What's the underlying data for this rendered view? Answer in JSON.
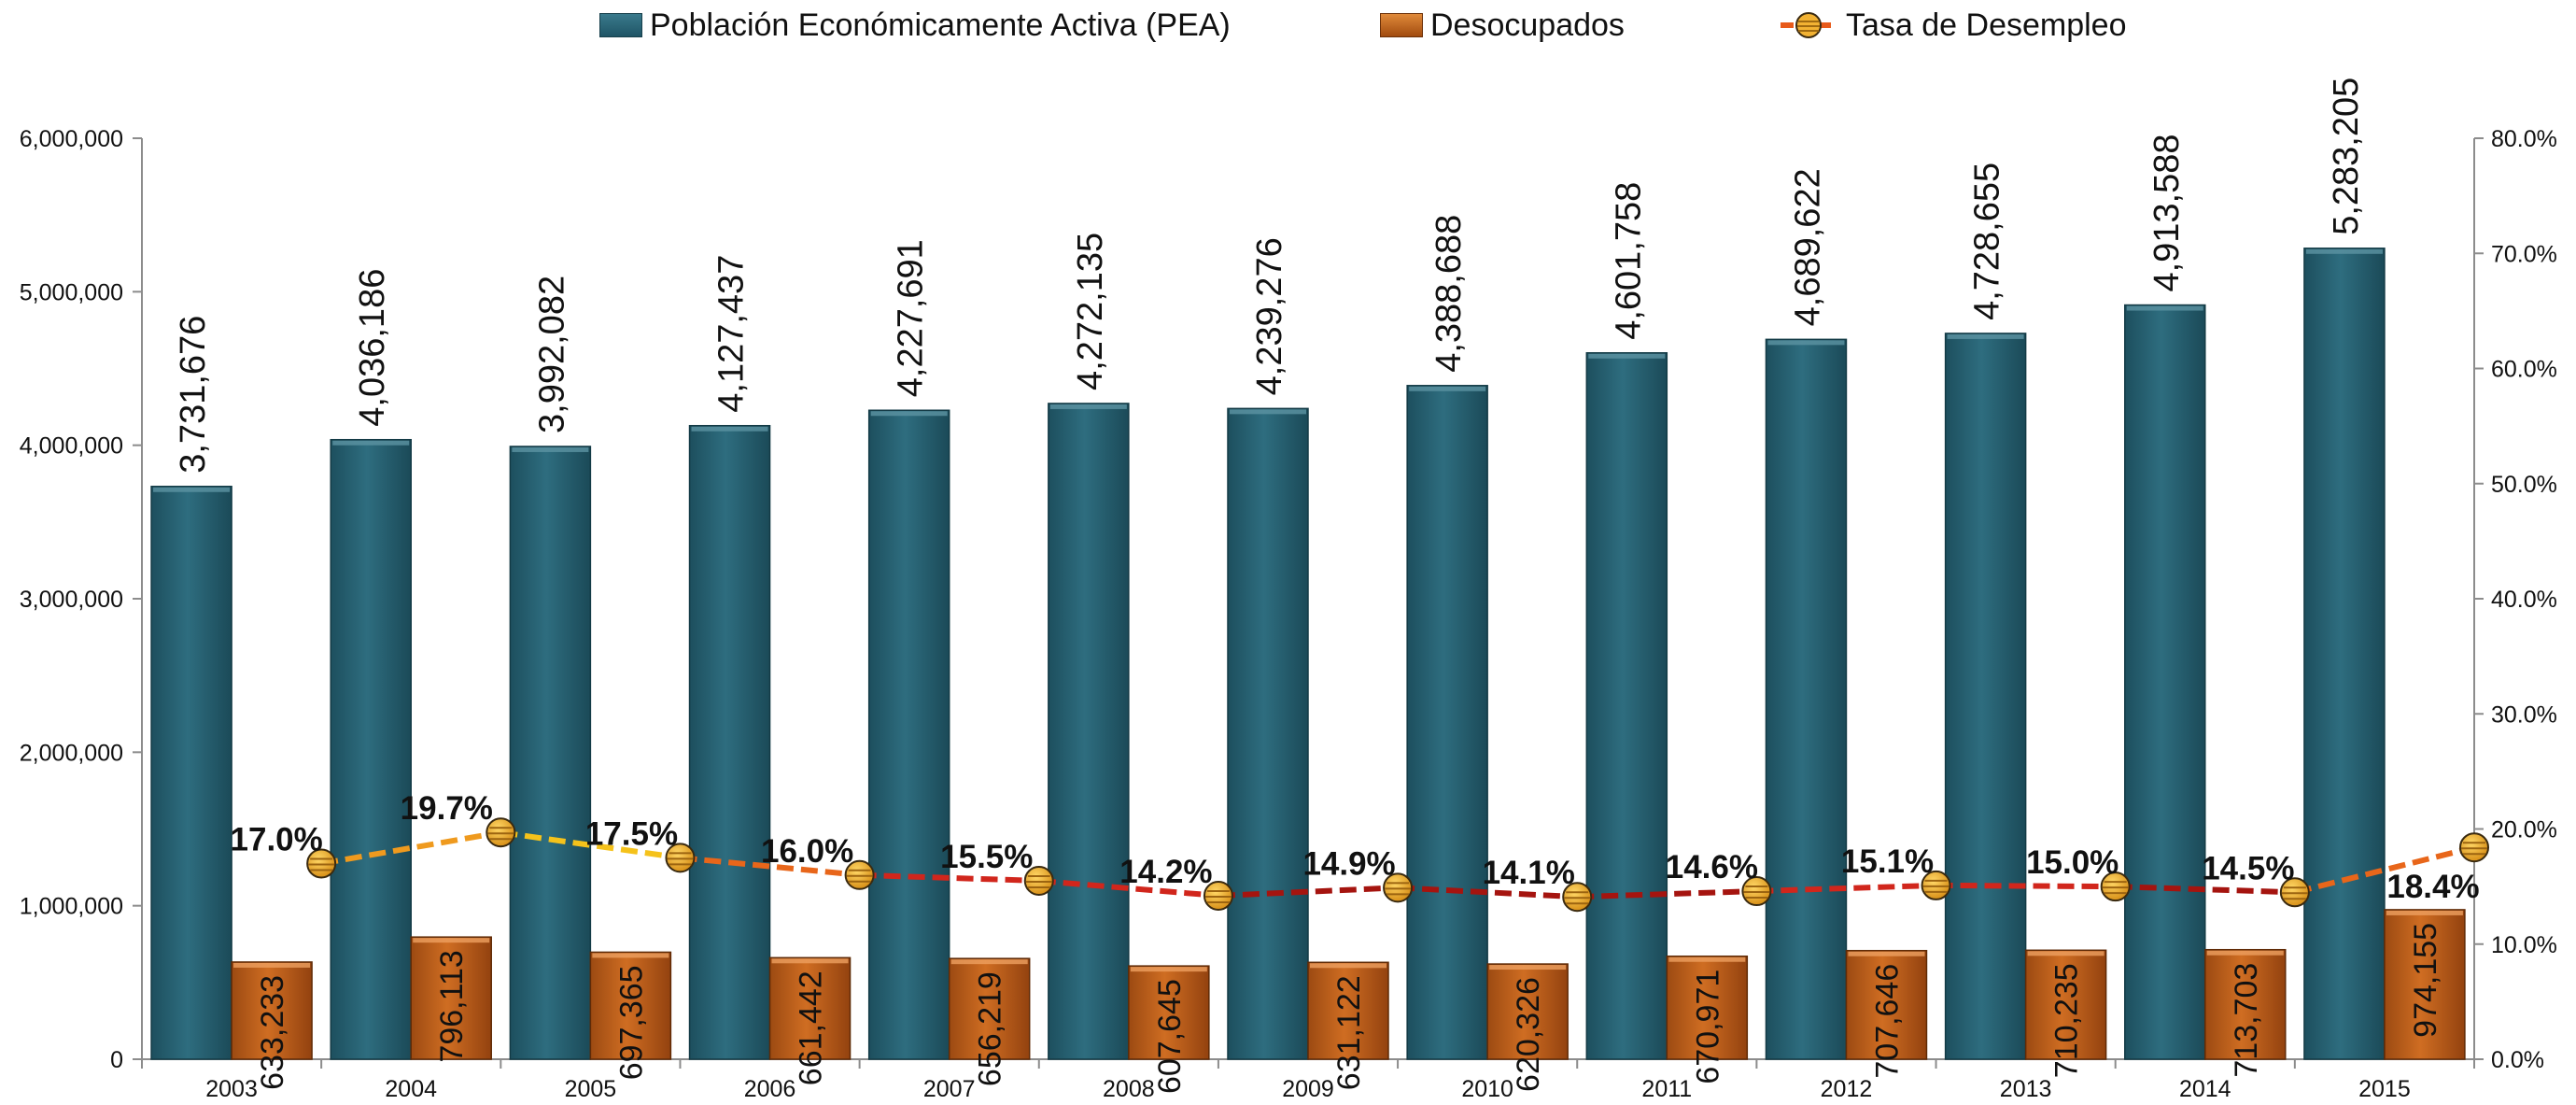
{
  "chart_data": {
    "type": "bar",
    "categories": [
      "2003",
      "2004",
      "2005",
      "2006",
      "2007",
      "2008",
      "2009",
      "2010",
      "2011",
      "2012",
      "2013",
      "2014",
      "2015"
    ],
    "series": [
      {
        "name": "Población  Económicamente Activa (PEA)",
        "type": "bar",
        "axis": "left",
        "values": [
          3731676,
          4036186,
          3992082,
          4127437,
          4227691,
          4272135,
          4239276,
          4388688,
          4601758,
          4689622,
          4728655,
          4913588,
          5283205
        ],
        "labels": [
          "3,731,676",
          "4,036,186",
          "3,992,082",
          "4,127,437",
          "4,227,691",
          "4,272,135",
          "4,239,276",
          "4,388,688",
          "4,601,758",
          "4,689,622",
          "4,728,655",
          "4,913,588",
          "5,283,205"
        ],
        "color": "#2a6272"
      },
      {
        "name": "Desocupados",
        "type": "bar",
        "axis": "left",
        "values": [
          633233,
          796113,
          697365,
          661442,
          656219,
          607645,
          631122,
          620326,
          670971,
          707646,
          710235,
          713703,
          974155
        ],
        "labels": [
          "633,233",
          "796,113",
          "697,365",
          "661,442",
          "656,219",
          "607,645",
          "631,122",
          "620,326",
          "670,971",
          "707,646",
          "710,235",
          "713,703",
          "974,155"
        ],
        "color": "#b3561a"
      },
      {
        "name": "Tasa de Desempleo",
        "type": "line",
        "axis": "right",
        "values": [
          17.0,
          19.7,
          17.5,
          16.0,
          15.5,
          14.2,
          14.9,
          14.1,
          14.6,
          15.1,
          15.0,
          14.5,
          18.4
        ],
        "labels": [
          "17.0%",
          "19.7%",
          "17.5%",
          "16.0%",
          "15.5%",
          "14.2%",
          "14.9%",
          "14.1%",
          "14.6%",
          "15.1%",
          "15.0%",
          "14.5%",
          "18.4%"
        ],
        "color": "#d9261c"
      }
    ],
    "y_left": {
      "min": 0,
      "max": 6000000,
      "ticks": [
        0,
        1000000,
        2000000,
        3000000,
        4000000,
        5000000,
        6000000
      ],
      "tick_labels": [
        "0",
        "1,000,000",
        "2,000,000",
        "3,000,000",
        "4,000,000",
        "5,000,000",
        "6,000,000"
      ]
    },
    "y_right": {
      "min": 0,
      "max": 80,
      "ticks": [
        0,
        10,
        20,
        30,
        40,
        50,
        60,
        70,
        80
      ],
      "tick_labels": [
        "0.0%",
        "10.0%",
        "20.0%",
        "30.0%",
        "40.0%",
        "50.0%",
        "60.0%",
        "70.0%",
        "80.0%"
      ]
    },
    "title": "",
    "xlabel": "",
    "ylabel": "",
    "grid": false,
    "legend_position": "top-center"
  }
}
